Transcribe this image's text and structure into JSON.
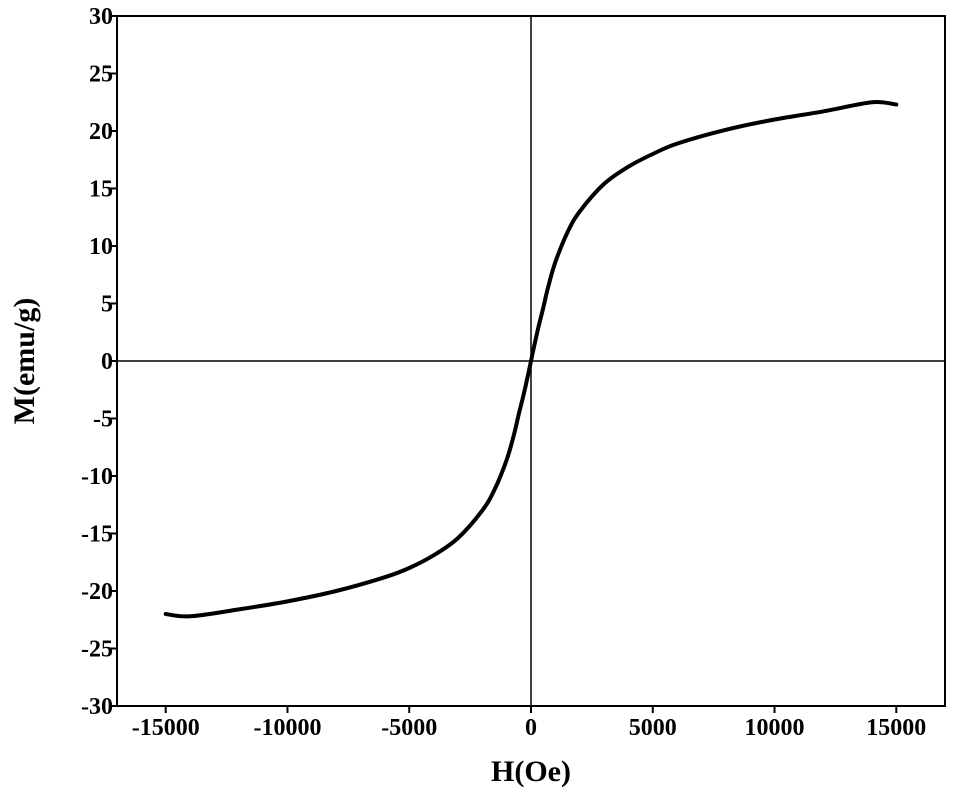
{
  "chart_data": {
    "type": "line",
    "title": "",
    "xlabel": "H(Oe)",
    "ylabel": "M(emu/g)",
    "xlim": [
      -17000,
      17000
    ],
    "ylim": [
      -30,
      30
    ],
    "xticks": [
      -15000,
      -10000,
      -5000,
      0,
      5000,
      10000,
      15000
    ],
    "yticks": [
      -30,
      -25,
      -20,
      -15,
      -10,
      -5,
      0,
      5,
      10,
      15,
      20,
      25,
      30
    ],
    "grid": false,
    "zero_lines": true,
    "series": [
      {
        "color": "#000000",
        "x": [
          -15000,
          -14000,
          -12000,
          -10000,
          -8000,
          -6000,
          -5000,
          -4000,
          -3000,
          -2000,
          -1500,
          -1000,
          -700,
          -500,
          -300,
          -100,
          0,
          100,
          300,
          500,
          700,
          1000,
          1500,
          2000,
          3000,
          4000,
          5000,
          6000,
          8000,
          10000,
          12000,
          14000,
          15000
        ],
        "y": [
          -22.0,
          -22.2,
          -21.6,
          -20.9,
          -20.0,
          -18.8,
          -18.0,
          -16.9,
          -15.4,
          -13.0,
          -11.2,
          -8.6,
          -6.4,
          -4.6,
          -2.9,
          -1.0,
          0.0,
          1.0,
          2.9,
          4.6,
          6.4,
          8.6,
          11.2,
          13.0,
          15.4,
          16.9,
          18.0,
          18.9,
          20.1,
          21.0,
          21.7,
          22.5,
          22.3
        ]
      }
    ]
  }
}
